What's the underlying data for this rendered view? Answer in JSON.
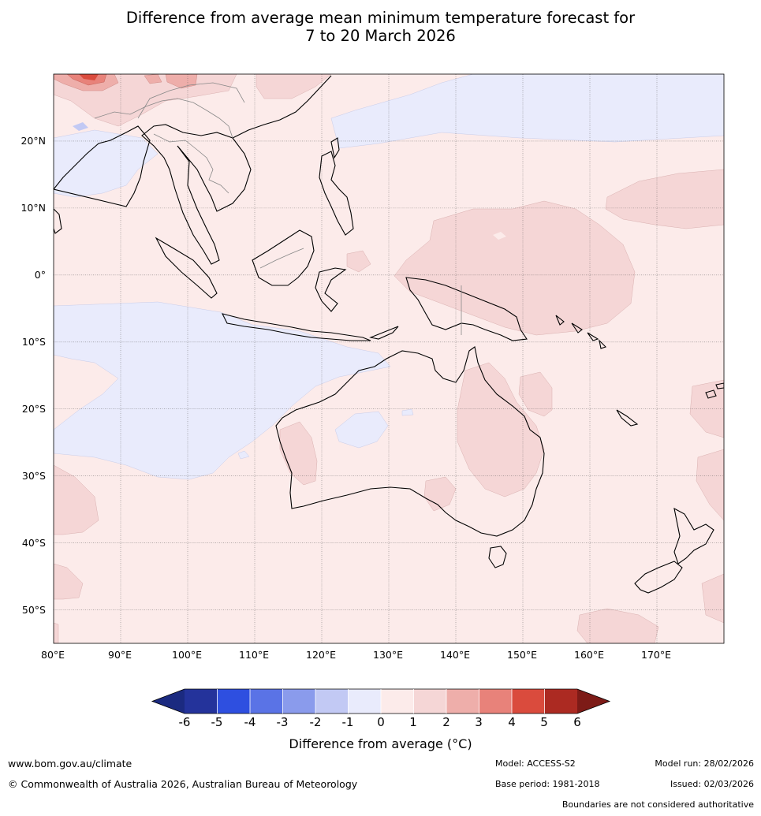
{
  "title": {
    "line1": "Difference from average mean minimum temperature forecast for",
    "line2": "7 to 20 March 2026"
  },
  "map": {
    "lat_labels": [
      "20°N",
      "10°N",
      "0°",
      "10°S",
      "20°S",
      "30°S",
      "40°S",
      "50°S"
    ],
    "lon_labels": [
      "80°E",
      "90°E",
      "100°E",
      "110°E",
      "120°E",
      "130°E",
      "140°E",
      "150°E",
      "160°E",
      "170°E"
    ],
    "extent": {
      "lon_min": 80,
      "lon_max": 180,
      "lat_min": -55,
      "lat_max": 30
    },
    "background_category": "0 to 1",
    "regions": [
      "cooler (-1 to 0) across the Indian Ocean west of Australia",
      "cooler (-1 to 0) across the tropical western Pacific north of the Philippines",
      "warmer (+1 to +2) across eastern Queensland and the Coral Sea",
      "warmer (+1 to +2) across the equatorial western Pacific",
      "warmer (+4 to +5) over the Himalaya"
    ]
  },
  "colorbar": {
    "ticks": [
      "-6",
      "-5",
      "-4",
      "-3",
      "-2",
      "-1",
      "0",
      "1",
      "2",
      "3",
      "4",
      "5",
      "6"
    ],
    "colors": [
      "#24339b",
      "#2e4fe0",
      "#5a73e6",
      "#8a9bec",
      "#c2c9f4",
      "#e9ebfc",
      "#fcebea",
      "#f5d6d6",
      "#eeaeaa",
      "#e8827a",
      "#da4b3d",
      "#ac2a22"
    ],
    "under_color": "#1b2a80",
    "over_color": "#7d1b17",
    "title": "Difference from average ($^\\circ$C)",
    "title_text": "Difference from average (",
    "title_unit": "°C)"
  },
  "footer": {
    "website": "www.bom.gov.au/climate",
    "copyright": "© Commonwealth of Australia 2026, Australian Bureau of Meteorology",
    "model": "Model: ACCESS-S2",
    "base_period": "Base period: 1981-2018",
    "model_run": "Model run: 28/02/2026",
    "issued": "Issued: 02/03/2026",
    "disclaimer": "Boundaries are not considered authoritative"
  }
}
